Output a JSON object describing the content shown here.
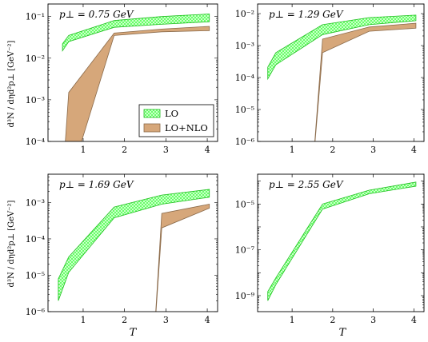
{
  "colors": {
    "lo_fill": "#4dff4d",
    "lo_stroke": "#1fbf1f",
    "nlo_fill": "#d6a77a",
    "nlo_stroke": "#8a6a4a"
  },
  "legend": {
    "lo": "LO",
    "nlo": "LO+NLO"
  },
  "x_axis_label": "T",
  "y_axis_label": "d³N / dηd²p⊥ [GeV⁻²]",
  "chart_data": [
    {
      "type": "area",
      "annotation": "p⊥ = 0.75 GeV",
      "xlim": [
        0.15,
        4.25
      ],
      "ylim": [
        0.0001,
        0.2
      ],
      "yscale": "log",
      "xticks": [
        1,
        2,
        3,
        4
      ],
      "yticks": [
        {
          "value": 0.0001,
          "label": "10⁻⁴"
        },
        {
          "value": 0.001,
          "label": "10⁻³"
        },
        {
          "value": 0.01,
          "label": "10⁻²"
        },
        {
          "value": 0.1,
          "label": "10⁻¹"
        }
      ],
      "legend_shown": true,
      "legend_position": "bottom-right",
      "series": [
        {
          "name": "LO",
          "x": [
            0.5,
            0.65,
            1.75,
            2.9,
            4.05
          ],
          "y_low": [
            0.015,
            0.025,
            0.055,
            0.065,
            0.075
          ],
          "y_high": [
            0.022,
            0.035,
            0.08,
            0.1,
            0.115
          ]
        },
        {
          "name": "LO+NLO",
          "x": [
            0.5,
            0.65,
            1.75,
            2.9,
            4.05
          ],
          "y_low": [
            1e-05,
            1e-05,
            0.035,
            0.043,
            0.046
          ],
          "y_high": [
            1e-05,
            0.0015,
            0.04,
            0.05,
            0.058
          ]
        }
      ]
    },
    {
      "type": "area",
      "annotation": "p⊥ = 1.29 GeV",
      "xlim": [
        0.15,
        4.25
      ],
      "ylim": [
        1e-06,
        0.02
      ],
      "yscale": "log",
      "xticks": [
        1,
        2,
        3,
        4
      ],
      "yticks": [
        {
          "value": 1e-06,
          "label": "10⁻⁶"
        },
        {
          "value": 1e-05,
          "label": "10⁻⁵"
        },
        {
          "value": 0.0001,
          "label": "10⁻⁴"
        },
        {
          "value": 0.001,
          "label": "10⁻³"
        },
        {
          "value": 0.01,
          "label": "10⁻²"
        }
      ],
      "legend_shown": false,
      "series": [
        {
          "name": "LO",
          "x": [
            0.4,
            0.6,
            1.75,
            2.9,
            4.05
          ],
          "y_low": [
            9e-05,
            0.00025,
            0.0022,
            0.0045,
            0.006
          ],
          "y_high": [
            0.00021,
            0.0006,
            0.0045,
            0.0075,
            0.009
          ]
        },
        {
          "name": "LO+NLO",
          "x": [
            1.5,
            1.75,
            2.9,
            4.05
          ],
          "y_low": [
            1e-07,
            0.0006,
            0.0028,
            0.0035
          ],
          "y_high": [
            1e-07,
            0.0016,
            0.0038,
            0.005
          ]
        }
      ]
    },
    {
      "type": "area",
      "annotation": "p⊥ = 1.69 GeV",
      "xlim": [
        0.15,
        4.25
      ],
      "ylim": [
        1e-06,
        0.006
      ],
      "yscale": "log",
      "xticks": [
        1,
        2,
        3,
        4
      ],
      "yticks": [
        {
          "value": 1e-06,
          "label": "10⁻⁶"
        },
        {
          "value": 1e-05,
          "label": "10⁻⁵"
        },
        {
          "value": 0.0001,
          "label": "10⁻⁴"
        },
        {
          "value": 0.001,
          "label": "10⁻³"
        }
      ],
      "legend_shown": false,
      "series": [
        {
          "name": "LO",
          "x": [
            0.4,
            0.65,
            1.75,
            2.9,
            4.05
          ],
          "y_low": [
            2e-06,
            1.2e-05,
            0.00038,
            0.0009,
            0.0014
          ],
          "y_high": [
            8e-06,
            3.2e-05,
            0.00075,
            0.0016,
            0.0023
          ]
        },
        {
          "name": "LO+NLO",
          "x": [
            2.7,
            2.9,
            4.05
          ],
          "y_low": [
            1e-07,
            0.0002,
            0.0007
          ],
          "y_high": [
            1e-07,
            0.0005,
            0.0009
          ]
        }
      ]
    },
    {
      "type": "area",
      "annotation": "p⊥ = 2.55 GeV",
      "xlim": [
        0.15,
        4.25
      ],
      "ylim": [
        2e-10,
        0.0002
      ],
      "yscale": "log",
      "xticks": [
        1,
        2,
        3,
        4
      ],
      "yticks": [
        {
          "value": 1e-09,
          "label": "10⁻⁹"
        },
        {
          "value": 1e-07,
          "label": "10⁻⁷"
        },
        {
          "value": 1e-05,
          "label": "10⁻⁵"
        }
      ],
      "legend_shown": false,
      "series": [
        {
          "name": "LO",
          "x": [
            0.4,
            0.6,
            1.75,
            2.9,
            4.05
          ],
          "y_low": [
            6e-10,
            3e-09,
            6e-06,
            2.8e-05,
            6e-05
          ],
          "y_high": [
            1.5e-09,
            6e-09,
            1e-05,
            4e-05,
            9e-05
          ]
        }
      ]
    }
  ]
}
